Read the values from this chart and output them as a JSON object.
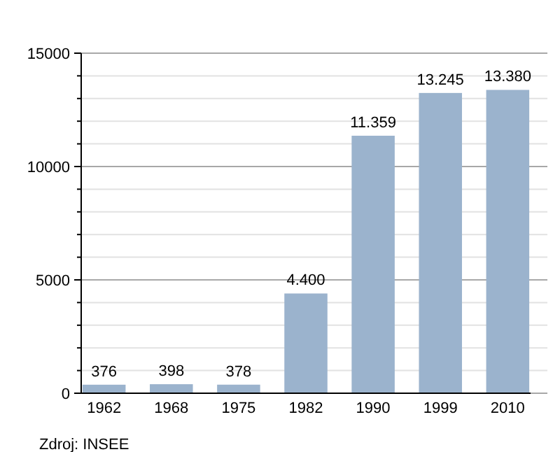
{
  "chart_data": {
    "type": "bar",
    "categories": [
      "1962",
      "1968",
      "1975",
      "1982",
      "1990",
      "1999",
      "2010"
    ],
    "values": [
      376,
      398,
      378,
      4400,
      11359,
      13245,
      13380
    ],
    "value_labels": [
      "376",
      "398",
      "378",
      "4.400",
      "11.359",
      "13.245",
      "13.380"
    ],
    "color": "#9bb3cd",
    "ylim": [
      0,
      15000
    ],
    "yticks": [
      0,
      {
        "value": 1000,
        "label": null
      },
      {
        "value": 2000,
        "label": null
      },
      {
        "value": 3000,
        "label": null
      },
      {
        "value": 4000,
        "label": null
      },
      5000,
      {
        "value": 6000,
        "label": null
      },
      {
        "value": 7000,
        "label": null
      },
      {
        "value": 8000,
        "label": null
      },
      {
        "value": 9000,
        "label": null
      },
      10000,
      {
        "value": 11000,
        "label": null
      },
      {
        "value": 12000,
        "label": null
      },
      {
        "value": 13000,
        "label": null
      },
      {
        "value": 14000,
        "label": null
      },
      15000
    ],
    "grid": "y",
    "annotations": [
      "Zdroj: INSEE"
    ]
  }
}
